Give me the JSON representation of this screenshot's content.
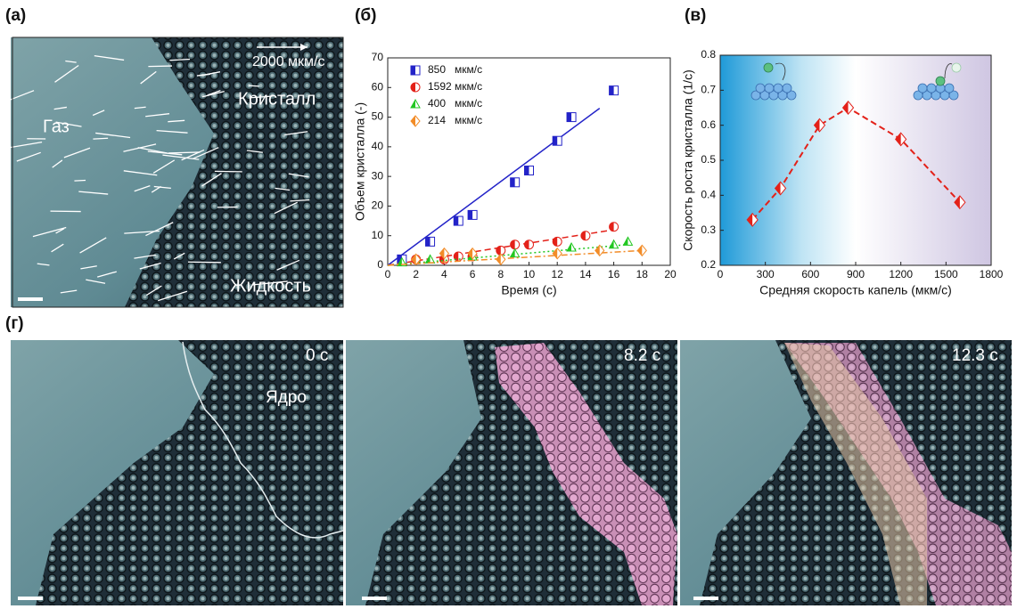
{
  "panels": {
    "a": {
      "label": "(a)",
      "scale": "2000 мкм/с",
      "crystal": "Кристалл",
      "gas": "Газ",
      "liquid": "Жидкость"
    },
    "b": {
      "label": "(б)"
    },
    "c": {
      "label": "(в)"
    },
    "d": {
      "label": "(г)",
      "frames": [
        {
          "time": "0 с",
          "note": "Ядро"
        },
        {
          "time": "8.2 с"
        },
        {
          "time": "12.3 с"
        }
      ]
    }
  },
  "chart_data": [
    {
      "type": "scatter",
      "xlabel": "Время (с)",
      "ylabel": "Объем кристалла (-)",
      "xlim": [
        0,
        20
      ],
      "xticks": [
        0,
        2,
        4,
        6,
        8,
        10,
        12,
        14,
        16,
        18,
        20
      ],
      "ylim": [
        0,
        70
      ],
      "yticks": [
        0,
        10,
        20,
        30,
        40,
        50,
        60,
        70
      ],
      "series": [
        {
          "name": "850   мкм/с",
          "color": "#2323c8",
          "marker": "square",
          "line_style": "solid",
          "x": [
            1,
            3,
            5,
            6,
            9,
            10,
            12,
            13,
            16
          ],
          "values": [
            2,
            8,
            15,
            17,
            28,
            32,
            42,
            50,
            59
          ],
          "fit": {
            "x": [
              0,
              15
            ],
            "values": [
              0,
              53
            ]
          }
        },
        {
          "name": "1592 мкм/с",
          "color": "#e32119",
          "marker": "circle",
          "line_style": "dashed",
          "x": [
            2,
            4,
            5,
            6,
            8,
            9,
            10,
            12,
            14,
            16
          ],
          "values": [
            2,
            2,
            3,
            3,
            5,
            7,
            7,
            8,
            10,
            13
          ],
          "fit": {
            "x": [
              0,
              16
            ],
            "values": [
              0,
              12
            ]
          }
        },
        {
          "name": "400   мкм/с",
          "color": "#22c722",
          "marker": "triangle",
          "line_style": "dotted",
          "x": [
            1,
            3,
            6,
            9,
            13,
            16,
            17
          ],
          "values": [
            1,
            2,
            3,
            4,
            6,
            7,
            8
          ],
          "fit": {
            "x": [
              0,
              17
            ],
            "values": [
              0,
              7
            ]
          }
        },
        {
          "name": "214   мкм/с",
          "color": "#f28c28",
          "marker": "diamond",
          "line_style": "dashdot",
          "x": [
            2,
            4,
            6,
            8,
            12,
            15,
            18
          ],
          "values": [
            2,
            4,
            4,
            2,
            4,
            5,
            5
          ],
          "fit": {
            "x": [
              0,
              18
            ],
            "values": [
              0,
              5
            ]
          }
        }
      ]
    },
    {
      "type": "line",
      "xlabel": "Средняя скорость капель (мкм/с)",
      "ylabel": "Скорость роста кристалла (1/с)",
      "xlim": [
        0,
        1800
      ],
      "xticks": [
        0,
        300,
        600,
        900,
        1200,
        1500,
        1800
      ],
      "ylim": [
        0.2,
        0.8
      ],
      "yticks": [
        0.2,
        0.3,
        0.4,
        0.5,
        0.6,
        0.7,
        0.8
      ],
      "series": [
        {
          "color": "#e32119",
          "marker": "diamond",
          "line_style": "dashed",
          "x": [
            214,
            400,
            660,
            850,
            1200,
            1592
          ],
          "values": [
            0.33,
            0.42,
            0.6,
            0.65,
            0.56,
            0.38
          ]
        }
      ]
    }
  ]
}
